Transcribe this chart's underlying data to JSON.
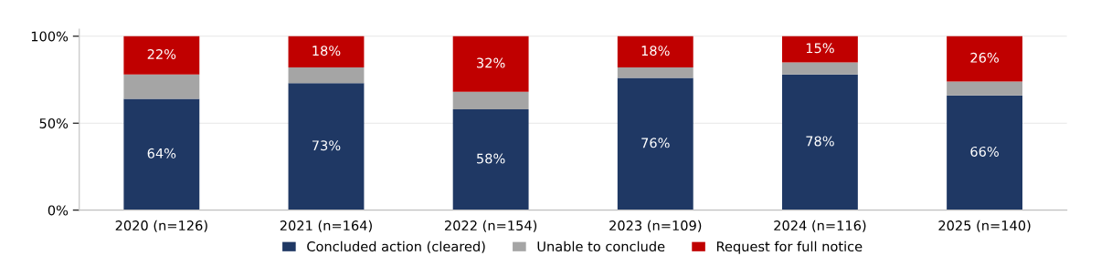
{
  "chart_data": {
    "type": "bar",
    "stacked": true,
    "categories": [
      "2020 (n=126)",
      "2021 (n=164)",
      "2022 (n=154)",
      "2023 (n=109)",
      "2024 (n=116)",
      "2025 (n=140)"
    ],
    "series": [
      {
        "name": "Concluded action (cleared)",
        "color": "#1f3864",
        "values": [
          64,
          73,
          58,
          76,
          78,
          66
        ],
        "value_labels": [
          "64%",
          "73%",
          "58%",
          "76%",
          "78%",
          "66%"
        ]
      },
      {
        "name": "Unable to conclude",
        "color": "#a5a5a5",
        "values": [
          14,
          9,
          10,
          6,
          7,
          8
        ]
      },
      {
        "name": "Request for full notice",
        "color": "#c00000",
        "values": [
          22,
          18,
          32,
          18,
          15,
          26
        ],
        "value_labels": [
          "22%",
          "18%",
          "32%",
          "18%",
          "15%",
          "26%"
        ]
      }
    ],
    "ylim": [
      0,
      104
    ],
    "yticks": [
      {
        "value": 0,
        "label": "0%"
      },
      {
        "value": 50,
        "label": "50%"
      },
      {
        "value": 100,
        "label": "100%"
      }
    ],
    "grid": "y",
    "legend": "bottom"
  }
}
